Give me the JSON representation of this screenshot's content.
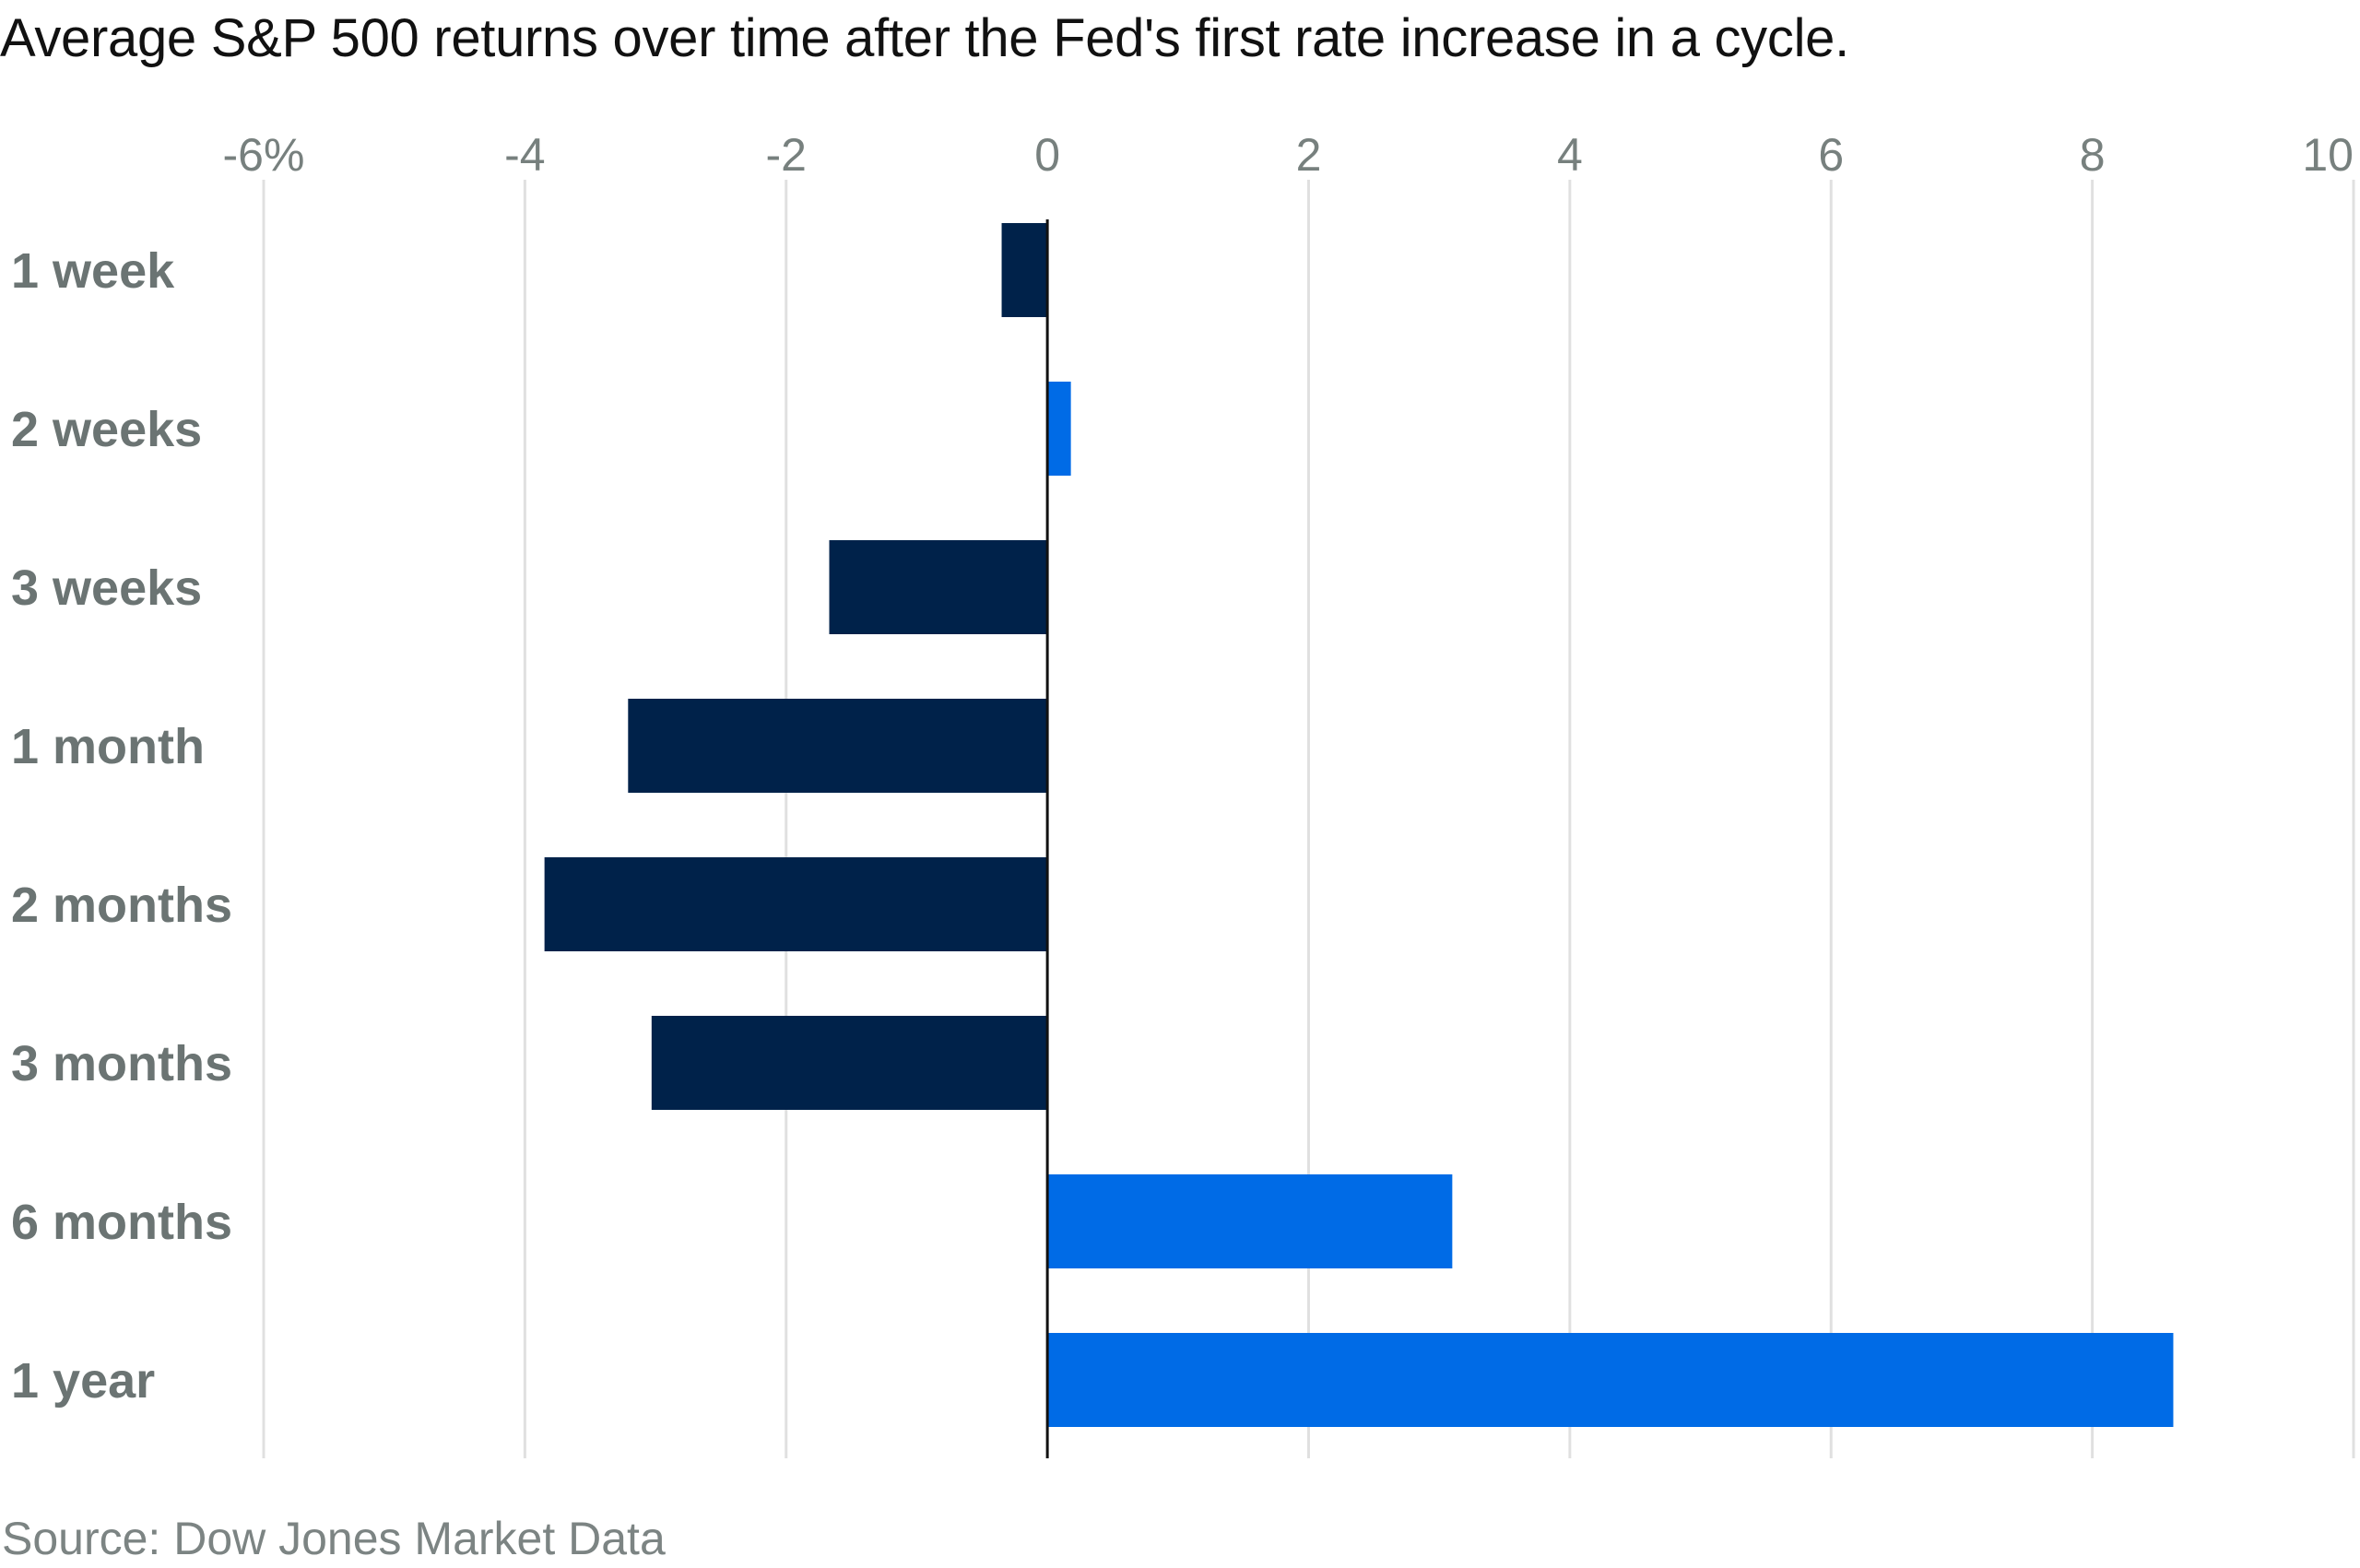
{
  "title": "Average S&P 500 returns over time after the Fed's first rate increase in a cycle.",
  "source": "Source: Dow Jones Market Data",
  "colors": {
    "negative": "#00224a",
    "positive": "#006be6",
    "gridline": "#e0e0e0",
    "zero_line": "#111111"
  },
  "chart_data": {
    "type": "bar",
    "orientation": "horizontal",
    "categories": [
      "1 week",
      "2 weeks",
      "3 weeks",
      "1 month",
      "2 months",
      "3 months",
      "6 months",
      "1 year"
    ],
    "values": [
      -0.35,
      0.18,
      -1.67,
      -3.21,
      -3.85,
      -3.03,
      3.1,
      8.62
    ],
    "xlim": [
      -6,
      10
    ],
    "x_ticks": [
      -6,
      -4,
      -2,
      0,
      2,
      4,
      6,
      8,
      10
    ],
    "x_tick_labels": [
      "-6%",
      "-4",
      "-2",
      "0",
      "2",
      "4",
      "6",
      "8",
      "10"
    ],
    "axis_position": "top",
    "grid": true,
    "legend": "none"
  }
}
